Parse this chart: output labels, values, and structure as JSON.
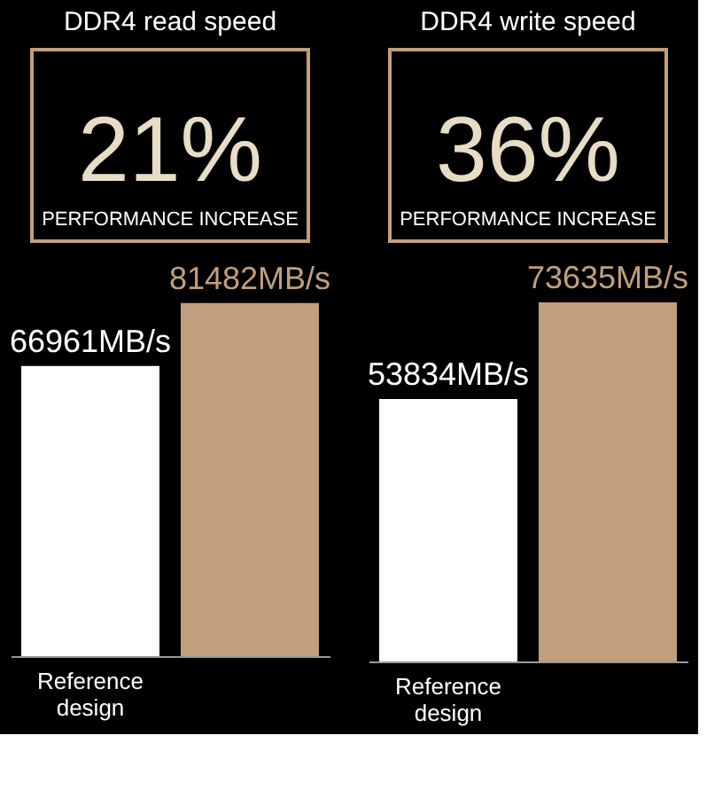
{
  "chart_data": [
    {
      "type": "bar",
      "title": "DDR4 read speed",
      "annotations": [
        "21%",
        "PERFORMANCE INCREASE"
      ],
      "categories": [
        "Reference design",
        null
      ],
      "values": [
        66961,
        81482
      ],
      "colors": [
        "#ffffff",
        "#c19f7d"
      ],
      "value_labels": [
        "66961MB/s",
        "81482MB/s"
      ]
    },
    {
      "type": "bar",
      "title": "DDR4 write speed",
      "annotations": [
        "36%",
        "PERFORMANCE INCREASE"
      ],
      "categories": [
        "Reference design",
        null
      ],
      "values": [
        53834,
        73635
      ],
      "colors": [
        "#ffffff",
        "#c19f7d"
      ],
      "value_labels": [
        "53834MB/s",
        "73635MB/s"
      ]
    }
  ]
}
